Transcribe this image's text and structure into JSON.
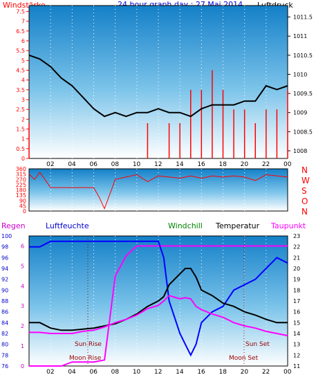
{
  "title": "24 hour graph day : 27 Mai 2014",
  "colors": {
    "frame": "#000000",
    "sky_top": "#1a8fd0",
    "sky_bottom": "#ffffff",
    "red": "#ff0000",
    "black": "#000000",
    "blue": "#0000ff",
    "magenta": "#ff00ff",
    "green": "#008000",
    "darkred": "#990000"
  },
  "x_ticks": [
    "02",
    "04",
    "06",
    "08",
    "10",
    "12",
    "14",
    "16",
    "18",
    "20",
    "22",
    "00"
  ],
  "top": {
    "left_title": "Windstärke",
    "right_title": "Luftdruck",
    "left_ticks": [
      "0",
      "0.5",
      "1",
      "1.5",
      "2",
      "2.5",
      "3",
      "3.5",
      "4",
      "4.5",
      "5",
      "5.5",
      "6",
      "6.5",
      "7",
      "7.5"
    ],
    "right_ticks": [
      "1008",
      "1008.5",
      "1009",
      "1009.5",
      "1010",
      "1010.5",
      "1011",
      "1011.5"
    ]
  },
  "mid": {
    "left_ticks": [
      "0",
      "45",
      "90",
      "135",
      "180",
      "225",
      "270",
      "315",
      "360"
    ],
    "right_letters": [
      "N",
      "W",
      "S",
      "O",
      "N"
    ]
  },
  "bottom": {
    "labels": {
      "regen": "Regen",
      "luftfeuchte": "Luftfeuchte",
      "windchill": "Windchill",
      "temperatur": "Temperatur",
      "taupunkt": "Taupunkt"
    },
    "humidity_ticks": [
      "76",
      "78",
      "80",
      "82",
      "84",
      "86",
      "88",
      "90",
      "92",
      "94",
      "96",
      "98",
      "100"
    ],
    "rain_ticks": [
      "0",
      "1",
      "2",
      "3",
      "4",
      "5",
      "6"
    ],
    "temp_ticks": [
      "11",
      "12",
      "13",
      "14",
      "15",
      "16",
      "17",
      "18",
      "19",
      "20",
      "21",
      "22",
      "23"
    ],
    "annotations": {
      "sun_rise": "Sun Rise",
      "sun_set": "Sun Set",
      "moon_rise": "Moon Rise",
      "moon_set": "Moon Set"
    }
  },
  "chart_data": [
    {
      "type": "line",
      "title": "24 hour graph day : 27 Mai 2014",
      "ylabel": "Windstärke",
      "y2label": "Luftdruck",
      "ylim": [
        0,
        7.8
      ],
      "y2lim": [
        1007.8,
        1011.8
      ],
      "x_hours": [
        0,
        1,
        2,
        3,
        4,
        5,
        6,
        7,
        8,
        9,
        10,
        11,
        12,
        13,
        14,
        15,
        16,
        17,
        18,
        19,
        20,
        21,
        22,
        23,
        24
      ],
      "series": [
        {
          "name": "Luftdruck",
          "values": [
            1010.5,
            1010.4,
            1010.2,
            1009.9,
            1009.7,
            1009.4,
            1009.1,
            1008.9,
            1009.0,
            1008.9,
            1009.0,
            1009.0,
            1009.1,
            1009.0,
            1009.0,
            1008.9,
            1009.1,
            1009.2,
            1009.2,
            1009.2,
            1009.3,
            1009.3,
            1009.7,
            1009.6,
            1009.7
          ]
        },
        {
          "name": "Windstärke",
          "values": [
            1.8,
            0,
            0,
            0,
            0,
            0,
            0,
            0,
            0,
            0,
            0,
            1.8,
            0,
            1.8,
            1.8,
            3.5,
            3.5,
            4.5,
            3.5,
            2.5,
            2.5,
            1.8,
            2.5,
            2.5,
            3.5
          ]
        }
      ]
    },
    {
      "type": "line",
      "ylabel": "Windrichtung",
      "ylim": [
        0,
        360
      ],
      "x_hours": [
        0,
        0.5,
        1,
        2,
        4,
        6,
        6.5,
        7,
        8,
        9,
        10,
        11,
        12,
        13,
        14,
        15,
        16,
        17,
        18,
        19,
        20,
        21,
        22,
        23,
        24
      ],
      "series": [
        {
          "name": "Windrichtung",
          "values": [
            315,
            270,
            330,
            200,
            200,
            200,
            120,
            20,
            270,
            290,
            310,
            250,
            300,
            290,
            280,
            300,
            280,
            300,
            290,
            300,
            290,
            260,
            310,
            300,
            290
          ]
        }
      ]
    },
    {
      "type": "line",
      "ylabel": "Luftfeuchte",
      "ylim": [
        76,
        100
      ],
      "y2label": "Temperatur",
      "y2lim": [
        11,
        23
      ],
      "x_hours": [
        0,
        1,
        2,
        3,
        4,
        5,
        6,
        7,
        8,
        9,
        10,
        11,
        12,
        12.5,
        13,
        14,
        14.5,
        15,
        15.5,
        16,
        17,
        18,
        19,
        20,
        21,
        22,
        23,
        24
      ],
      "series": [
        {
          "name": "Luftfeuchte",
          "values": [
            98,
            98,
            99,
            99,
            99,
            99,
            99,
            99,
            99,
            99,
            99,
            99,
            99,
            96,
            88,
            82,
            80,
            78,
            80,
            84,
            86,
            87,
            90,
            91,
            92,
            94,
            96,
            95
          ]
        },
        {
          "name": "Temperatur",
          "values": [
            15,
            15,
            14.5,
            14.3,
            14.3,
            14.4,
            14.5,
            14.7,
            14.9,
            15.3,
            15.8,
            16.5,
            17,
            17.4,
            18.5,
            19.5,
            20,
            20,
            19.2,
            18,
            17.5,
            16.8,
            16.5,
            16,
            15.7,
            15.3,
            15,
            15
          ]
        },
        {
          "name": "Taupunkt",
          "values": [
            14.1,
            14.1,
            14,
            14,
            14,
            14.2,
            14.3,
            14.6,
            15,
            15.3,
            15.7,
            16.3,
            16.6,
            17,
            17.5,
            17.2,
            17.3,
            17.2,
            16.5,
            16.2,
            15.8,
            15.5,
            15,
            14.7,
            14.5,
            14.2,
            14,
            13.8
          ]
        },
        {
          "name": "Regen",
          "values": [
            0,
            0,
            0,
            0,
            0.2,
            0.2,
            0.2,
            0.3,
            4.5,
            5.5,
            6,
            6,
            6,
            6,
            6,
            6,
            6,
            6,
            6,
            6,
            6,
            6,
            6,
            6,
            6,
            6,
            6,
            6
          ]
        }
      ]
    }
  ]
}
